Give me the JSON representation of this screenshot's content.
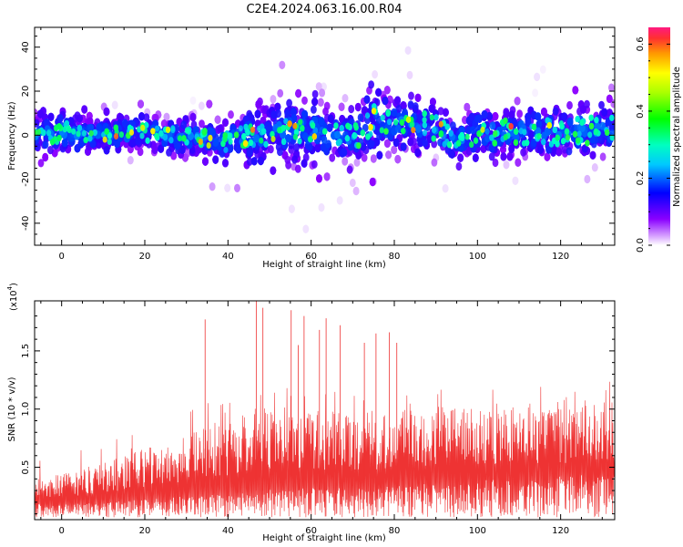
{
  "title": "C2E4.2024.063.16.00.R04",
  "chart_data": [
    {
      "type": "heatmap",
      "xlabel": "Height of straight line (km)",
      "ylabel": "Frequency (Hz)",
      "xlim": [
        -6.5,
        133
      ],
      "ylim": [
        -50,
        49
      ],
      "xticks": [
        0,
        20,
        40,
        60,
        80,
        100,
        120
      ],
      "yticks": [
        -40,
        -20,
        0,
        20,
        40
      ],
      "colorbar": {
        "label": "Normalized spectral amplitude",
        "range": [
          0,
          0.65
        ],
        "ticks": [
          "0.0",
          "0.2",
          "0.4",
          "0.6"
        ],
        "tick_values": [
          0.0,
          0.2,
          0.4,
          0.6
        ]
      },
      "profile": {
        "x": [
          -6,
          0,
          10,
          20,
          30,
          38,
          42,
          50,
          56,
          62,
          70,
          75,
          80,
          90,
          95,
          100,
          110,
          120,
          125,
          133
        ],
        "center_hz": [
          1,
          1,
          0,
          1,
          -1,
          -2,
          -1,
          1,
          3,
          2,
          -1,
          7,
          6,
          3,
          -2,
          1,
          2,
          1,
          2,
          3
        ],
        "spread_hz": [
          5,
          5,
          4,
          4,
          4,
          5,
          6,
          7,
          8,
          7,
          6,
          8,
          7,
          6,
          5,
          6,
          6,
          6,
          6,
          6
        ]
      }
    },
    {
      "type": "line",
      "xlabel": "Height of straight line (km)",
      "ylabel": "SNR (10 * v/v)",
      "yscale_label": "(x10",
      "yscale_exp": "4",
      "xlim": [
        -6.5,
        133
      ],
      "ylim": [
        0.05,
        1.93
      ],
      "xticks": [
        0,
        20,
        40,
        60,
        80,
        100,
        120
      ],
      "yticks": [
        0.5,
        1.0,
        1.5
      ],
      "ytick_labels": [
        "0.5",
        "1.0",
        "1.5"
      ],
      "color": "#ee3333",
      "envelope": {
        "x": [
          -6,
          0,
          10,
          20,
          30,
          34,
          40,
          46,
          50,
          60,
          70,
          80,
          90,
          100,
          110,
          120,
          133
        ],
        "typical": [
          0.32,
          0.38,
          0.45,
          0.55,
          0.62,
          0.7,
          0.75,
          0.8,
          0.85,
          0.82,
          0.8,
          0.82,
          0.85,
          0.85,
          0.85,
          0.85,
          0.9
        ],
        "floor": [
          0.15,
          0.15,
          0.16,
          0.18,
          0.2,
          0.2,
          0.22,
          0.22,
          0.24,
          0.25,
          0.25,
          0.26,
          0.28,
          0.3,
          0.3,
          0.32,
          0.34
        ]
      },
      "peaks": [
        {
          "x": 34.5,
          "y": 1.77
        },
        {
          "x": 46.8,
          "y": 1.93
        },
        {
          "x": 48.4,
          "y": 1.87
        },
        {
          "x": 55.2,
          "y": 1.85
        },
        {
          "x": 56.9,
          "y": 1.55
        },
        {
          "x": 58.3,
          "y": 1.8
        },
        {
          "x": 62.0,
          "y": 1.68
        },
        {
          "x": 63.6,
          "y": 1.78
        },
        {
          "x": 67.0,
          "y": 1.72
        },
        {
          "x": 72.8,
          "y": 1.57
        },
        {
          "x": 75.6,
          "y": 1.65
        },
        {
          "x": 78.8,
          "y": 1.66
        },
        {
          "x": 80.6,
          "y": 1.57
        }
      ]
    }
  ]
}
